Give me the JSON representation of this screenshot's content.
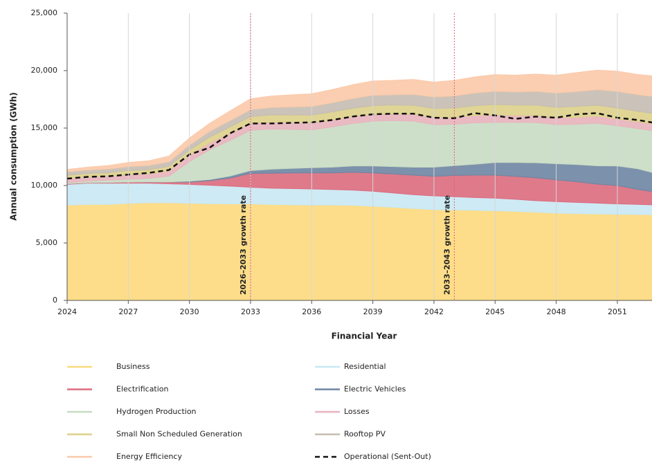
{
  "chart_data": {
    "type": "stacked-area",
    "xlabel": "Financial Year",
    "ylabel": "Annual consumption (GWh)",
    "x": [
      2024,
      2025,
      2026,
      2027,
      2028,
      2029,
      2030,
      2031,
      2032,
      2033,
      2034,
      2035,
      2036,
      2037,
      2038,
      2039,
      2040,
      2041,
      2042,
      2043,
      2044,
      2045,
      2046,
      2047,
      2048,
      2049,
      2050,
      2051,
      2052,
      2053
    ],
    "xlim": [
      2024,
      2052.7
    ],
    "xticks": [
      2024,
      2027,
      2030,
      2033,
      2036,
      2039,
      2042,
      2045,
      2048,
      2051
    ],
    "ylim": [
      0,
      25000
    ],
    "yticks": [
      0,
      {
        "value": 5000,
        "label": "5,000"
      },
      {
        "value": 10000,
        "label": "10,000"
      },
      {
        "value": 15000,
        "label": "15,000"
      },
      {
        "value": 20000,
        "label": "20,000"
      },
      {
        "value": 25000,
        "label": "25,000"
      }
    ],
    "grid": "x",
    "annotations": [
      {
        "x": 2033,
        "label": "2026–2033 growth rate"
      },
      {
        "x": 2043,
        "label": "2033–2043 growth rate"
      }
    ],
    "series": [
      {
        "name": "Business",
        "type": "area",
        "color": "#fdd97c",
        "values": [
          8300,
          8350,
          8350,
          8450,
          8500,
          8500,
          8450,
          8420,
          8400,
          8400,
          8350,
          8320,
          8300,
          8300,
          8280,
          8200,
          8100,
          8000,
          7900,
          7880,
          7850,
          7800,
          7750,
          7680,
          7600,
          7550,
          7520,
          7500,
          7480,
          7450
        ]
      },
      {
        "name": "Residential",
        "type": "area",
        "color": "#c9e8f3",
        "values": [
          1800,
          1850,
          1850,
          1750,
          1700,
          1650,
          1650,
          1600,
          1550,
          1450,
          1420,
          1420,
          1400,
          1350,
          1320,
          1300,
          1250,
          1200,
          1200,
          1150,
          1100,
          1100,
          1050,
          1000,
          1000,
          980,
          950,
          900,
          880,
          850
        ]
      },
      {
        "name": "Electrification",
        "type": "area",
        "color": "#dc6b7e",
        "values": [
          50,
          50,
          60,
          100,
          120,
          150,
          200,
          400,
          700,
          1200,
          1300,
          1350,
          1400,
          1450,
          1550,
          1600,
          1650,
          1700,
          1700,
          1850,
          1950,
          2000,
          2000,
          2000,
          1900,
          1800,
          1650,
          1600,
          1300,
          1100
        ]
      },
      {
        "name": "Electric Vehicles",
        "type": "area",
        "color": "#6e85a2",
        "values": [
          0,
          0,
          0,
          0,
          0,
          20,
          80,
          100,
          180,
          250,
          350,
          400,
          450,
          500,
          550,
          600,
          650,
          700,
          800,
          850,
          950,
          1100,
          1200,
          1300,
          1400,
          1500,
          1600,
          1700,
          1800,
          1600
        ]
      },
      {
        "name": "Hydrogen Production",
        "type": "area",
        "color": "#c9dbc3",
        "values": [
          100,
          150,
          200,
          250,
          300,
          500,
          1700,
          2600,
          3100,
          3500,
          3500,
          3400,
          3300,
          3500,
          3700,
          3900,
          4000,
          4000,
          3700,
          3600,
          3600,
          3500,
          3500,
          3500,
          3400,
          3500,
          3700,
          3500,
          3500,
          3700
        ]
      },
      {
        "name": "Losses",
        "type": "area",
        "color": "#e8b3bc",
        "values": [
          350,
          350,
          350,
          400,
          400,
          450,
          550,
          600,
          620,
          600,
          600,
          600,
          600,
          600,
          600,
          600,
          600,
          600,
          600,
          600,
          650,
          650,
          600,
          620,
          600,
          600,
          620,
          600,
          600,
          600
        ]
      },
      {
        "name": "Small Non Scheduled Generation",
        "type": "area",
        "color": "#ddd089",
        "values": [
          300,
          300,
          300,
          350,
          350,
          400,
          450,
          500,
          550,
          600,
          620,
          650,
          680,
          700,
          720,
          750,
          750,
          780,
          800,
          820,
          850,
          900,
          900,
          900,
          900,
          950,
          950,
          950,
          900,
          900
        ]
      },
      {
        "name": "Rooftop PV",
        "type": "area",
        "color": "#c5bdb1",
        "values": [
          300,
          300,
          320,
          350,
          380,
          400,
          450,
          500,
          550,
          600,
          650,
          700,
          750,
          800,
          850,
          900,
          900,
          950,
          1000,
          1050,
          1100,
          1150,
          1150,
          1200,
          1250,
          1300,
          1350,
          1450,
          1450,
          1500
        ]
      },
      {
        "name": "Energy Efficiency",
        "type": "area",
        "color": "#fbc9a9",
        "values": [
          200,
          250,
          300,
          350,
          400,
          500,
          600,
          700,
          850,
          950,
          1000,
          1050,
          1100,
          1150,
          1200,
          1250,
          1250,
          1300,
          1300,
          1350,
          1400,
          1450,
          1450,
          1500,
          1550,
          1650,
          1700,
          1750,
          1750,
          1800
        ]
      },
      {
        "name": "Operational (Sent-Out)",
        "type": "line",
        "color": "#111111",
        "values": [
          10600,
          10750,
          10800,
          10950,
          11100,
          11350,
          12700,
          13300,
          14550,
          15400,
          15400,
          15450,
          15500,
          15700,
          16000,
          16200,
          16250,
          16250,
          15900,
          15850,
          16300,
          16100,
          15800,
          16000,
          15900,
          16200,
          16300,
          15900,
          15700,
          15400
        ]
      }
    ]
  }
}
